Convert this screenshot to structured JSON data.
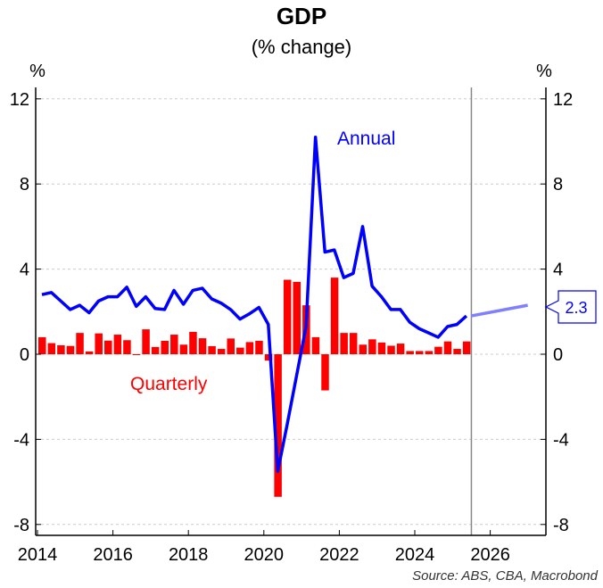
{
  "chart_data": {
    "type": "bar+line",
    "title": "GDP",
    "subtitle": "(% change)",
    "ylabel_left": "%",
    "ylabel_right": "%",
    "ylim": [
      -8.5,
      12.5
    ],
    "yticks": [
      -8,
      -4,
      0,
      4,
      8,
      12
    ],
    "yticklabels": [
      "-8",
      "-4",
      "0",
      "4",
      "8",
      "12"
    ],
    "xlim": [
      2014,
      2027.5
    ],
    "xticks": [
      2014,
      2016,
      2018,
      2020,
      2022,
      2024,
      2026
    ],
    "xticklabels": [
      "2014",
      "2016",
      "2018",
      "2020",
      "2022",
      "2024",
      "2026"
    ],
    "start_quarter": 2014.0,
    "series": [
      {
        "name": "Quarterly",
        "type": "bar",
        "color": "#ff0000",
        "values": [
          0.8,
          0.52,
          0.42,
          0.39,
          1.0,
          0.13,
          0.98,
          0.64,
          0.92,
          0.66,
          -0.03,
          1.17,
          0.34,
          0.63,
          0.92,
          0.45,
          1.05,
          0.75,
          0.38,
          0.25,
          0.74,
          0.31,
          0.57,
          0.63,
          -0.3,
          -6.7,
          3.5,
          3.4,
          2.3,
          0.8,
          -1.7,
          3.6,
          1.0,
          1.0,
          0.45,
          0.7,
          0.55,
          0.4,
          0.5,
          0.15,
          0.15,
          0.15,
          0.35,
          0.6,
          0.25,
          0.6
        ]
      },
      {
        "name": "Annual",
        "type": "line",
        "color": "#0000ff",
        "values": [
          2.8,
          2.9,
          2.5,
          2.1,
          2.3,
          1.95,
          2.5,
          2.7,
          2.7,
          3.15,
          2.25,
          2.7,
          2.15,
          2.1,
          3.0,
          2.35,
          3.0,
          3.1,
          2.6,
          2.4,
          2.1,
          1.65,
          1.9,
          2.2,
          1.4,
          -5.5,
          -3.3,
          -1.0,
          1.3,
          10.2,
          4.8,
          4.9,
          3.6,
          3.8,
          6.0,
          3.2,
          2.7,
          2.1,
          2.1,
          1.5,
          1.2,
          1.0,
          0.8,
          1.3,
          1.4,
          1.8
        ]
      },
      {
        "name": "Annual forecast",
        "type": "line",
        "color": "#8080ff",
        "x": [
          2025.375,
          2026.875
        ],
        "values": [
          1.8,
          2.3
        ]
      }
    ],
    "forecast_divider_x": 2025.5,
    "annotations": {
      "annual_label": "Annual",
      "quarterly_label": "Quarterly",
      "last_value": "2.3"
    },
    "source": "Source: ABS, CBA, Macrobond"
  }
}
